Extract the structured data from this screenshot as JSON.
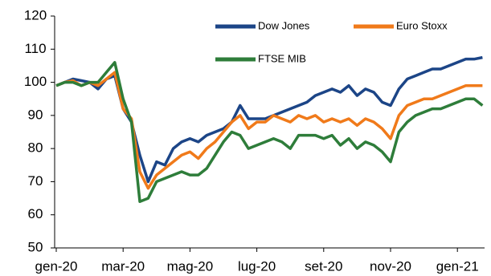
{
  "chart_data": {
    "type": "line",
    "categories": [
      "gen-20",
      null,
      null,
      null,
      null,
      null,
      null,
      null,
      "mar-20",
      null,
      null,
      null,
      null,
      null,
      null,
      null,
      "mag-20",
      null,
      null,
      null,
      null,
      null,
      null,
      null,
      "lug-20",
      null,
      null,
      null,
      null,
      null,
      null,
      null,
      "set-20",
      null,
      null,
      null,
      null,
      null,
      null,
      null,
      "nov-20",
      null,
      null,
      null,
      null,
      null,
      null,
      null,
      "gen-21",
      null,
      null,
      null
    ],
    "series": [
      {
        "name": "Dow Jones",
        "color": "#1c4587",
        "values": [
          99,
          100,
          101,
          100.5,
          100,
          98,
          101,
          102,
          92,
          88,
          78,
          70,
          76,
          75,
          80,
          82,
          83,
          82,
          84,
          85,
          86,
          88,
          93,
          89,
          89,
          89,
          90,
          91,
          92,
          93,
          94,
          96,
          97,
          98,
          97,
          99,
          96,
          98,
          97,
          94,
          93,
          98,
          101,
          102,
          103,
          104,
          104,
          105,
          106,
          107,
          107,
          107.5
        ]
      },
      {
        "name": "Euro Stoxx",
        "color": "#f07a1a",
        "values": [
          99,
          100,
          100.5,
          99,
          100,
          99,
          101,
          103,
          92,
          89,
          73,
          68,
          72,
          74,
          76,
          78,
          79,
          77,
          80,
          82,
          85,
          88,
          90,
          86,
          88,
          88,
          90,
          89,
          88,
          90,
          89,
          90,
          88,
          89,
          88,
          89,
          87,
          89,
          88,
          86,
          83,
          90,
          93,
          94,
          95,
          95,
          96,
          97,
          98,
          99,
          99,
          99
        ]
      },
      {
        "name": "FTSE MIB",
        "color": "#2e7d3a",
        "values": [
          99,
          100,
          100,
          99,
          100,
          100,
          103,
          106,
          95,
          88,
          64,
          65,
          70,
          71,
          72,
          73,
          72,
          72,
          74,
          78,
          82,
          85,
          84,
          80,
          81,
          82,
          83,
          82,
          80,
          84,
          84,
          84,
          83,
          84,
          81,
          83,
          80,
          82,
          81,
          79,
          76,
          85,
          88,
          90,
          91,
          92,
          92,
          93,
          94,
          95,
          95,
          93
        ]
      }
    ],
    "ylim": [
      50,
      120
    ],
    "yticks": [
      50,
      60,
      70,
      80,
      90,
      100,
      110,
      120
    ]
  }
}
